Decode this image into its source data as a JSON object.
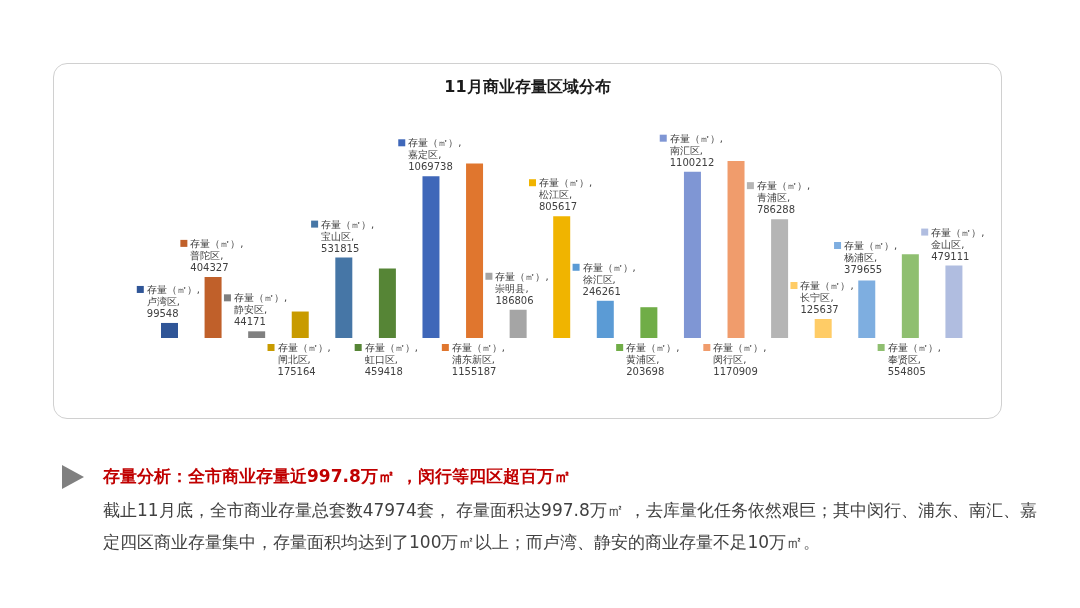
{
  "chart_data": {
    "type": "bar",
    "title": "11月商业存量区域分布",
    "categories": [
      null,
      null,
      null,
      null,
      null,
      null,
      null,
      null,
      null,
      null,
      null,
      null,
      null,
      null,
      null,
      null,
      null,
      null,
      null
    ],
    "series": [
      {
        "colors": [
          "#2f5597",
          "#c0602a",
          "#808080",
          "#c89b00",
          "#4676a6",
          "#568536",
          "#3f67b9",
          "#e0762e",
          "#a5a5a5",
          "#f0b400",
          "#5b9bd5",
          "#70ad47",
          "#7f96d4",
          "#f09c6c",
          "#b5b5b5",
          "#ffcc66",
          "#7eaee0",
          "#8fbf70",
          "#b0bde0"
        ],
        "values": [
          99548,
          404327,
          44171,
          175164,
          531815,
          459418,
          1069738,
          1155187,
          186806,
          805617,
          246261,
          203698,
          1100212,
          1170909,
          786288,
          125637,
          379655,
          554805,
          479111
        ],
        "value_labels": [
          "存量（㎡）, 卢湾区, 99548",
          "存量（㎡）, 普陀区, 404327",
          "存量（㎡）, 静安区, 44171",
          "存量（㎡）, 闸北区, 175164",
          "存量（㎡）, 宝山区, 531815",
          "存量（㎡）, 虹口区, 459418",
          "存量（㎡）, 嘉定区, 1069738",
          "存量（㎡）, 浦东新区, 1155187",
          "存量（㎡）, 崇明县, 186806",
          "存量（㎡）, 松江区, 805617",
          "存量（㎡）, 徐汇区, 246261",
          "存量（㎡）, 黄浦区, 203698",
          "存量（㎡）, 南汇区, 1100212",
          "存量（㎡）, 闵行区, 1170909",
          "存量（㎡）, 青浦区, 786288",
          "存量（㎡）, 长宁区, 125637",
          "存量（㎡）, 杨浦区, 379655",
          "存量（㎡）, 奉贤区, 554805",
          "存量（㎡）, 金山区, 479111"
        ]
      }
    ],
    "annotations": [
      "存量分析：全市商业存量近997.8万㎡ ，闵行等四区超百万㎡",
      "截止11月底，全市商业存量总套数47974套， 存量面积达997.8万㎡ ，去库量化任务依然艰巨；其中闵行、浦东、南汇、嘉定四区商业存量集中，存量面积均达到了100万㎡以上；而卢湾、静安的商业存量不足10万㎡。"
    ]
  }
}
